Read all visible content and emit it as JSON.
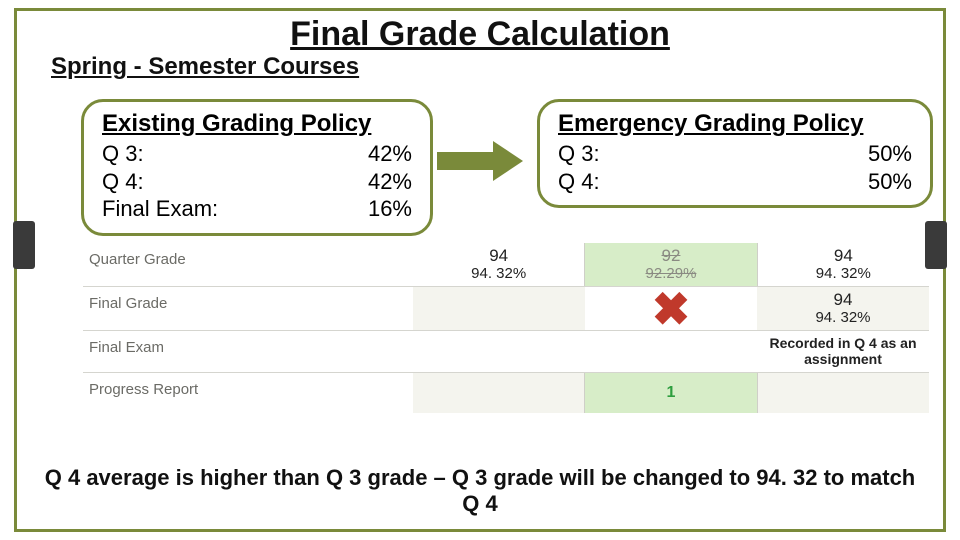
{
  "title": "Final Grade Calculation",
  "subtitle": "Spring - Semester Courses",
  "existing_policy": {
    "heading": "Existing Grading Policy",
    "rows": [
      {
        "label": "Q 3:",
        "value": "42%"
      },
      {
        "label": "Q 4:",
        "value": "42%"
      },
      {
        "label": "Final Exam:",
        "value": "16%"
      }
    ]
  },
  "emergency_policy": {
    "heading": "Emergency Grading Policy",
    "rows": [
      {
        "label": "Q 3:",
        "value": "50%"
      },
      {
        "label": "Q 4:",
        "value": "50%"
      }
    ]
  },
  "colors": {
    "accent": "#7a8a3a",
    "green_cell": "#d7edc8",
    "pale_cell": "#f4f4ee",
    "red_x": "#c0392b",
    "green_text": "#2e9e3f"
  },
  "table": {
    "rows": [
      {
        "label": "Quarter Grade",
        "cells": [
          {
            "top": "94",
            "bot": "94. 32%",
            "style": "plain"
          },
          {
            "top": "92",
            "bot": "92.29%",
            "style": "struck-green"
          },
          {
            "top": "94",
            "bot": "94. 32%",
            "style": "plain"
          }
        ]
      },
      {
        "label": "Final Grade",
        "cells": [
          {
            "style": "pale-empty"
          },
          {
            "style": "x-mark"
          },
          {
            "top": "94",
            "bot": "94. 32%",
            "style": "pale-val"
          }
        ]
      },
      {
        "label": "Final Exam",
        "cells": [
          {
            "style": "empty"
          },
          {
            "style": "empty"
          },
          {
            "note": "Recorded in Q 4 as an assignment",
            "style": "note"
          }
        ]
      },
      {
        "label": "Progress Report",
        "cells": [
          {
            "style": "pale-empty"
          },
          {
            "text": "1",
            "style": "green-one"
          },
          {
            "style": "pale-empty"
          }
        ]
      }
    ]
  },
  "bottom_text": "Q 4 average is higher than Q 3 grade – Q 3 grade will be changed to 94. 32 to match Q 4"
}
